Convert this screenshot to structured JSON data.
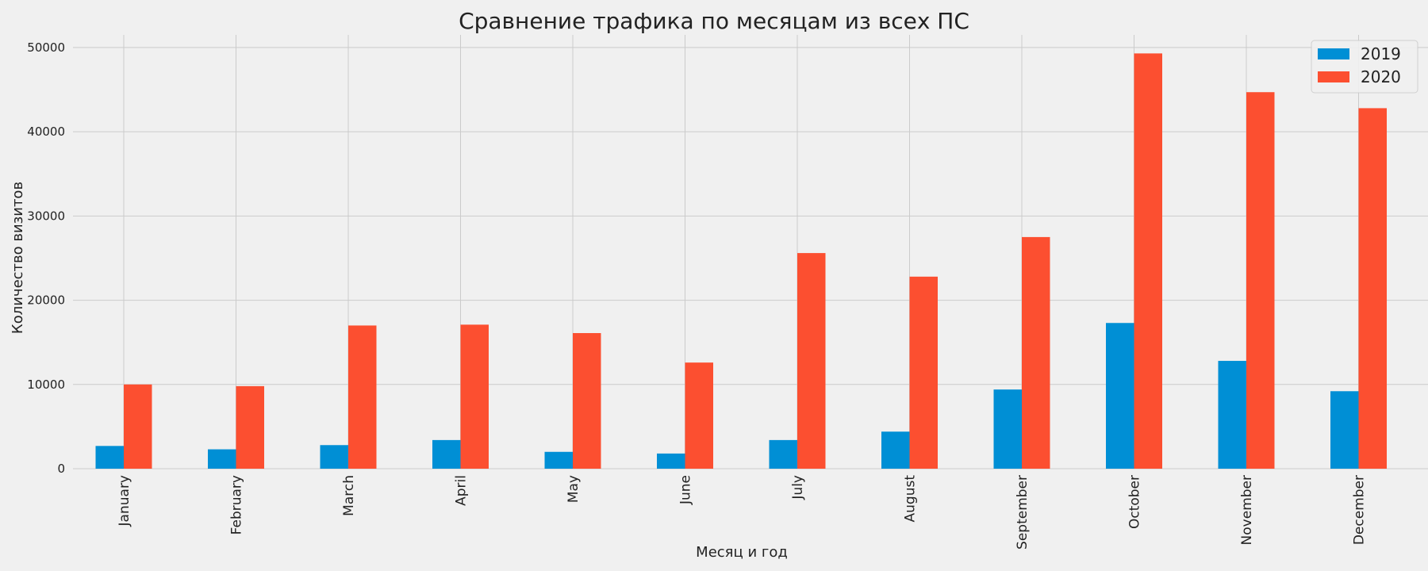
{
  "chart_data": {
    "type": "bar",
    "title": "Сравнение трафика по месяцам из всех ПС",
    "xlabel": "Месяц и год",
    "ylabel": "Количество визитов",
    "categories": [
      "January",
      "February",
      "March",
      "April",
      "May",
      "June",
      "July",
      "August",
      "September",
      "October",
      "November",
      "December"
    ],
    "series": [
      {
        "name": "2019",
        "color": "#008fd5",
        "values": [
          2700,
          2300,
          2800,
          3400,
          2000,
          1800,
          3400,
          4400,
          9400,
          17300,
          12800,
          9200
        ]
      },
      {
        "name": "2020",
        "color": "#fc4f30",
        "values": [
          10000,
          9800,
          17000,
          17100,
          16100,
          12600,
          25600,
          22800,
          27500,
          49300,
          44700,
          42800
        ]
      }
    ],
    "ylim": [
      0,
      51500
    ],
    "yticks": [
      0,
      10000,
      20000,
      30000,
      40000,
      50000
    ],
    "ytick_labels": [
      "0",
      "10000",
      "20000",
      "30000",
      "40000",
      "50000"
    ],
    "grid": true,
    "legend_position": "top-right"
  }
}
